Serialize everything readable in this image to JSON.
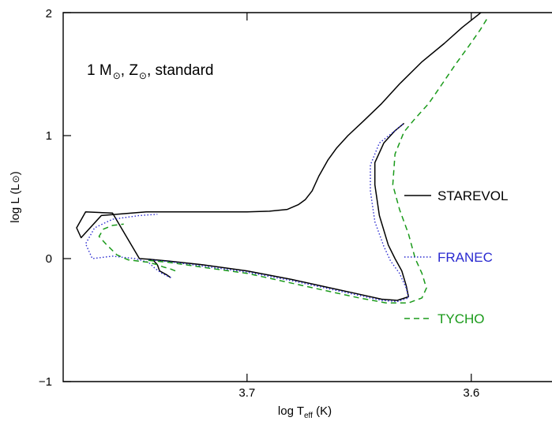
{
  "chart_data": {
    "type": "line",
    "annotation": {
      "mass": "1 M",
      "metal": "Z",
      "tail": ", standard"
    },
    "xlabel": {
      "main": "log T",
      "sub": "eff",
      "unit": " (K)"
    },
    "ylabel": {
      "main": "log L (L",
      "close": ")"
    },
    "xlim": [
      3.782,
      3.564
    ],
    "ylim": [
      -1,
      2
    ],
    "x_ticks": [
      3.7,
      3.6
    ],
    "x_tick_labels": [
      "3.7",
      "3.6"
    ],
    "y_ticks": [
      -1,
      0,
      1,
      2
    ],
    "y_tick_labels": [
      "−1",
      "0",
      "1",
      "2"
    ],
    "legend_placement": "right",
    "series": [
      {
        "name": "STAREVOL",
        "color": "#000000",
        "dash": "solid",
        "x": [
          3.734,
          3.736,
          3.739,
          3.74,
          3.742,
          3.744,
          3.748,
          3.76,
          3.772,
          3.776,
          3.774,
          3.765,
          3.745,
          3.73,
          3.715,
          3.7,
          3.69,
          3.682,
          3.677,
          3.674,
          3.671,
          3.668,
          3.664,
          3.66,
          3.655,
          3.648,
          3.64,
          3.632,
          3.622,
          3.612,
          3.604,
          3.595
        ],
        "y": [
          -0.155,
          -0.13,
          -0.1,
          -0.05,
          -0.01,
          -0.005,
          0.0,
          0.37,
          0.38,
          0.25,
          0.17,
          0.35,
          0.38,
          0.38,
          0.38,
          0.38,
          0.385,
          0.4,
          0.44,
          0.48,
          0.55,
          0.67,
          0.8,
          0.9,
          1.0,
          1.12,
          1.26,
          1.42,
          1.6,
          1.75,
          1.88,
          2.01
        ]
      },
      {
        "name": "STAREVOL",
        "color": "#000000",
        "dash": "solid",
        "x": [
          3.744,
          3.735,
          3.72,
          3.7,
          3.68,
          3.665,
          3.65,
          3.64,
          3.633,
          3.628,
          3.629,
          3.631,
          3.634,
          3.637,
          3.641,
          3.643,
          3.643,
          3.639,
          3.634,
          3.63
        ],
        "y": [
          -0.005,
          -0.02,
          -0.05,
          -0.1,
          -0.17,
          -0.23,
          -0.29,
          -0.33,
          -0.34,
          -0.31,
          -0.22,
          -0.1,
          0.0,
          0.11,
          0.35,
          0.6,
          0.78,
          0.94,
          1.04,
          1.1
        ]
      },
      {
        "name": "FRANEC",
        "color": "#2a2ad0",
        "dash": "dotted",
        "x": [
          3.734,
          3.738,
          3.741,
          3.744,
          3.75,
          3.76,
          3.769,
          3.772,
          3.768,
          3.76,
          3.748,
          3.74
        ],
        "y": [
          -0.155,
          -0.12,
          -0.08,
          -0.03,
          0.0,
          0.02,
          0.0,
          0.12,
          0.25,
          0.32,
          0.35,
          0.36
        ]
      },
      {
        "name": "FRANEC",
        "color": "#2a2ad0",
        "dash": "dotted",
        "x": [
          3.744,
          3.735,
          3.72,
          3.7,
          3.68,
          3.665,
          3.65,
          3.64,
          3.633,
          3.628,
          3.629,
          3.632,
          3.636,
          3.639,
          3.643,
          3.645,
          3.645,
          3.641,
          3.634,
          3.63
        ],
        "y": [
          -0.01,
          -0.025,
          -0.06,
          -0.11,
          -0.18,
          -0.24,
          -0.3,
          -0.34,
          -0.35,
          -0.32,
          -0.24,
          -0.12,
          -0.02,
          0.1,
          0.3,
          0.55,
          0.76,
          0.94,
          1.04,
          1.1
        ]
      },
      {
        "name": "TYCHO",
        "color": "#1a9a1a",
        "dash": "dashed",
        "x": [
          3.732,
          3.734,
          3.737,
          3.74,
          3.744,
          3.753,
          3.758,
          3.763,
          3.766,
          3.764,
          3.76,
          3.755
        ],
        "y": [
          -0.1,
          -0.085,
          -0.07,
          -0.05,
          -0.03,
          -0.01,
          0.03,
          0.12,
          0.18,
          0.24,
          0.27,
          0.28
        ]
      },
      {
        "name": "TYCHO",
        "color": "#1a9a1a",
        "dash": "dashed",
        "x": [
          3.744,
          3.735,
          3.72,
          3.7,
          3.68,
          3.665,
          3.65,
          3.638,
          3.628,
          3.622,
          3.62,
          3.622,
          3.625,
          3.628,
          3.632,
          3.635,
          3.634,
          3.63,
          3.625,
          3.619,
          3.613,
          3.607,
          3.601,
          3.596,
          3.593
        ],
        "y": [
          -0.015,
          -0.03,
          -0.07,
          -0.12,
          -0.2,
          -0.26,
          -0.32,
          -0.36,
          -0.36,
          -0.32,
          -0.24,
          -0.12,
          0.0,
          0.2,
          0.4,
          0.6,
          0.85,
          1.03,
          1.14,
          1.26,
          1.42,
          1.58,
          1.73,
          1.86,
          1.95
        ]
      }
    ],
    "legend": [
      {
        "label": "STAREVOL",
        "color": "#000000",
        "dash": "solid"
      },
      {
        "label": "FRANEC",
        "color": "#2a2ad0",
        "dash": "dotted"
      },
      {
        "label": "TYCHO",
        "color": "#1a9a1a",
        "dash": "dashed"
      }
    ]
  }
}
